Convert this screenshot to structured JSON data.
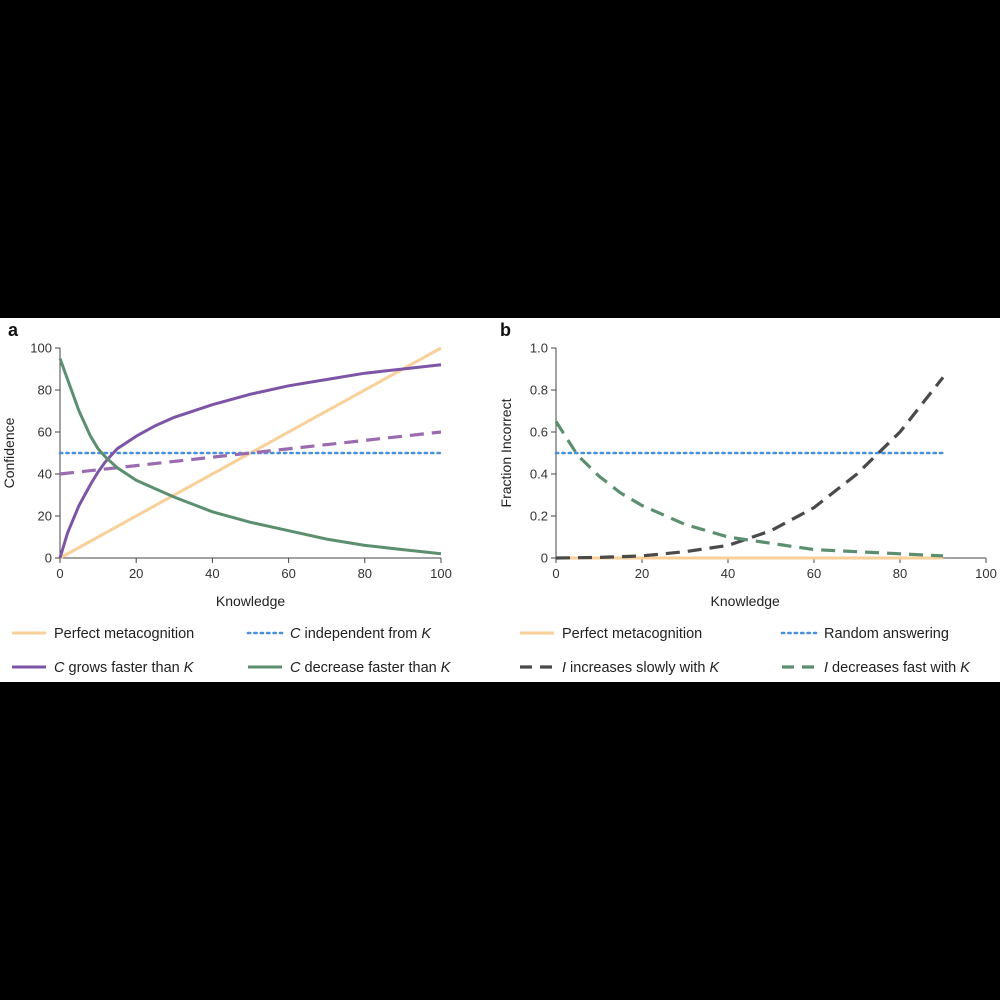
{
  "panels": [
    {
      "label": "a",
      "xlabel": "Knowledge",
      "ylabel": "Confidence",
      "xlim": [
        0,
        100
      ],
      "ylim": [
        0,
        100
      ],
      "xticks": [
        "0",
        "20",
        "40",
        "60",
        "80",
        "100"
      ],
      "yticks": [
        "0",
        "20",
        "40",
        "60",
        "80",
        "100"
      ],
      "legend": [
        [
          {
            "t": "Perfect metacognition"
          }
        ],
        [
          {
            "t": "C",
            "i": true
          },
          {
            "t": " independent from "
          },
          {
            "t": "K",
            "i": true
          }
        ],
        [
          {
            "t": "C",
            "i": true
          },
          {
            "t": " grows faster than "
          },
          {
            "t": "K",
            "i": true
          }
        ],
        [
          {
            "t": "C",
            "i": true
          },
          {
            "t": " decrease faster than "
          },
          {
            "t": "K",
            "i": true
          }
        ]
      ]
    },
    {
      "label": "b",
      "xlabel": "Knowledge",
      "ylabel": "Fraction Incorrect",
      "xlim": [
        0,
        100
      ],
      "ylim": [
        0,
        1
      ],
      "xticks": [
        "0",
        "20",
        "40",
        "60",
        "80",
        "100"
      ],
      "yticks": [
        "0",
        "0.2",
        "0.4",
        "0.6",
        "0.8",
        "1.0"
      ],
      "legend": [
        [
          {
            "t": "Perfect metacognition"
          }
        ],
        [
          {
            "t": "Random answering"
          }
        ],
        [
          {
            "t": "I",
            "i": true
          },
          {
            "t": " increases slowly with "
          },
          {
            "t": "K",
            "i": true
          }
        ],
        [
          {
            "t": "I",
            "i": true
          },
          {
            "t": " decreases fast with "
          },
          {
            "t": "K",
            "i": true
          }
        ]
      ]
    }
  ],
  "chart_data": [
    {
      "type": "line",
      "xlabel": "Knowledge",
      "ylabel": "Confidence",
      "xlim": [
        0,
        100
      ],
      "ylim": [
        0,
        100
      ],
      "grid": false,
      "legend_position": "bottom",
      "series": [
        {
          "name": "Perfect metacognition",
          "color": "#f9cf9a",
          "style": "solid",
          "x": [
            0,
            100
          ],
          "y": [
            0,
            100
          ]
        },
        {
          "name": "C independent from K",
          "color": "#4a90d9",
          "style": "dotted",
          "x": [
            0,
            100
          ],
          "y": [
            50,
            50
          ]
        },
        {
          "name": "C grows faster than K",
          "color": "#7d55a6",
          "style": "solid",
          "x": [
            0,
            2,
            5,
            8,
            10,
            12,
            15,
            20,
            25,
            30,
            40,
            50,
            60,
            70,
            80,
            90,
            100
          ],
          "y": [
            0,
            12,
            25,
            35,
            41,
            46,
            52,
            58,
            63,
            67,
            73,
            78,
            82,
            85,
            88,
            90,
            92
          ]
        },
        {
          "color": "#9b6bb0",
          "style": "dashed",
          "x": [
            0,
            100
          ],
          "y": [
            40,
            60
          ]
        },
        {
          "name": "C decrease faster than K",
          "color": "#5c8f6f",
          "style": "solid",
          "x": [
            0,
            2,
            5,
            8,
            10,
            12,
            15,
            20,
            25,
            30,
            40,
            50,
            60,
            70,
            80,
            90,
            100
          ],
          "y": [
            95,
            85,
            70,
            58,
            52,
            48,
            43,
            37,
            33,
            29,
            22,
            17,
            13,
            9,
            6,
            4,
            2
          ]
        }
      ]
    },
    {
      "type": "line",
      "xlabel": "Knowledge",
      "ylabel": "Fraction Incorrect",
      "xlim": [
        0,
        100
      ],
      "ylim": [
        0,
        1
      ],
      "grid": false,
      "legend_position": "bottom",
      "series": [
        {
          "name": "Perfect metacognition",
          "color": "#f9cf9a",
          "style": "solid",
          "x": [
            0,
            90
          ],
          "y": [
            0,
            0
          ]
        },
        {
          "name": "Random answering",
          "color": "#4a90d9",
          "style": "dotted",
          "x": [
            0,
            90
          ],
          "y": [
            0.5,
            0.5
          ]
        },
        {
          "name": "I increases slowly with K",
          "color": "#4a4a4a",
          "style": "dashed",
          "x": [
            0,
            10,
            20,
            30,
            40,
            50,
            60,
            70,
            80,
            90
          ],
          "y": [
            0.0,
            0.003,
            0.01,
            0.03,
            0.06,
            0.13,
            0.24,
            0.4,
            0.6,
            0.86
          ]
        },
        {
          "name": "I decreases fast with K",
          "color": "#5c8f6f",
          "style": "dashed",
          "x": [
            0,
            5,
            10,
            15,
            20,
            30,
            40,
            50,
            60,
            70,
            80,
            90
          ],
          "y": [
            0.65,
            0.49,
            0.39,
            0.31,
            0.25,
            0.16,
            0.1,
            0.07,
            0.04,
            0.03,
            0.02,
            0.01
          ]
        }
      ]
    }
  ]
}
